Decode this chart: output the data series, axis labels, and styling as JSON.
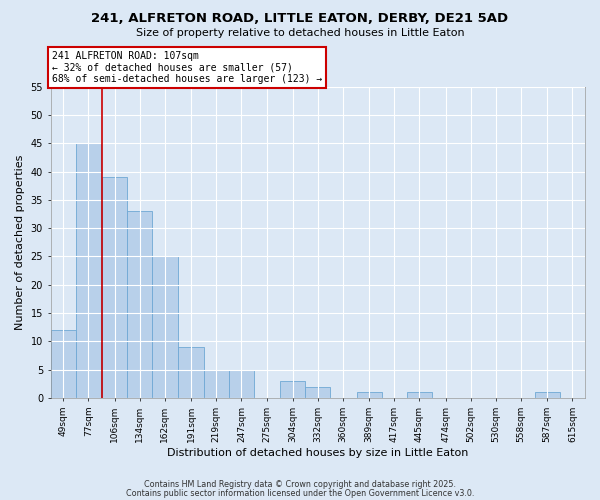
{
  "title": "241, ALFRETON ROAD, LITTLE EATON, DERBY, DE21 5AD",
  "subtitle": "Size of property relative to detached houses in Little Eaton",
  "xlabel": "Distribution of detached houses by size in Little Eaton",
  "ylabel": "Number of detached properties",
  "bar_color": "#b8d0ea",
  "bar_edge_color": "#6fa8d4",
  "background_color": "#dce8f5",
  "grid_color": "#ffffff",
  "vline_x": 106,
  "vline_color": "#cc0000",
  "categories": [
    "49sqm",
    "77sqm",
    "106sqm",
    "134sqm",
    "162sqm",
    "191sqm",
    "219sqm",
    "247sqm",
    "275sqm",
    "304sqm",
    "332sqm",
    "360sqm",
    "389sqm",
    "417sqm",
    "445sqm",
    "474sqm",
    "502sqm",
    "530sqm",
    "558sqm",
    "587sqm",
    "615sqm"
  ],
  "bin_edges": [
    49,
    77,
    106,
    134,
    162,
    191,
    219,
    247,
    275,
    304,
    332,
    360,
    389,
    417,
    445,
    474,
    502,
    530,
    558,
    587,
    615
  ],
  "bin_width": 28,
  "values": [
    12,
    45,
    39,
    33,
    25,
    9,
    5,
    5,
    0,
    3,
    2,
    0,
    1,
    0,
    1,
    0,
    0,
    0,
    0,
    1,
    0
  ],
  "ylim": [
    0,
    55
  ],
  "yticks": [
    0,
    5,
    10,
    15,
    20,
    25,
    30,
    35,
    40,
    45,
    50,
    55
  ],
  "annotation_title": "241 ALFRETON ROAD: 107sqm",
  "annotation_line1": "← 32% of detached houses are smaller (57)",
  "annotation_line2": "68% of semi-detached houses are larger (123) →",
  "annotation_box_color": "#ffffff",
  "annotation_box_edge": "#cc0000",
  "footer1": "Contains HM Land Registry data © Crown copyright and database right 2025.",
  "footer2": "Contains public sector information licensed under the Open Government Licence v3.0."
}
